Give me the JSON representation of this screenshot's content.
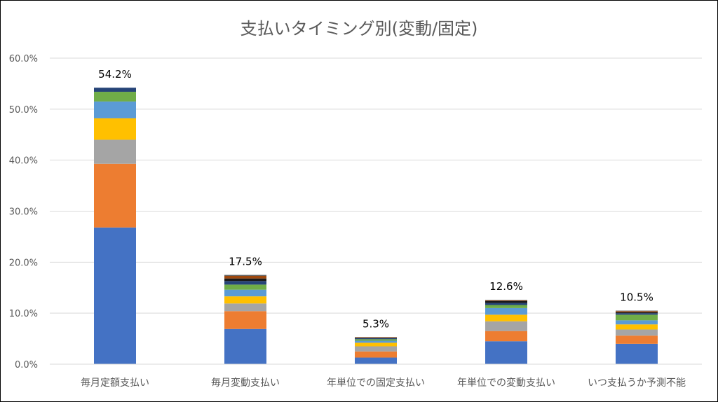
{
  "chart_data": {
    "type": "bar",
    "stacked": true,
    "title": "支払いタイミング別(変動/固定)",
    "categories": [
      "毎月定額支払い",
      "毎月変動支払い",
      "年単位での固定支払い",
      "年単位での変動支払い",
      "いつ支払うか予測不能"
    ],
    "totals_labels": [
      "54.2%",
      "17.5%",
      "5.3%",
      "12.6%",
      "10.5%"
    ],
    "ylim": [
      0,
      60
    ],
    "yticks": [
      0,
      10,
      20,
      30,
      40,
      50,
      60
    ],
    "ytick_labels": [
      "0.0%",
      "10.0%",
      "20.0%",
      "30.0%",
      "40.0%",
      "50.0%",
      "60.0%"
    ],
    "grid": true,
    "legend": "none",
    "series": [
      {
        "color": "#4472C4",
        "values": [
          26.8,
          6.9,
          1.3,
          4.5,
          4.0
        ]
      },
      {
        "color": "#ED7D31",
        "values": [
          12.5,
          3.5,
          1.2,
          2.0,
          1.6
        ]
      },
      {
        "color": "#A5A5A5",
        "values": [
          4.7,
          1.5,
          1.0,
          1.9,
          1.2
        ]
      },
      {
        "color": "#FFC000",
        "values": [
          4.2,
          1.4,
          0.7,
          1.3,
          1.0
        ]
      },
      {
        "color": "#5B9BD5",
        "values": [
          3.3,
          1.3,
          0.4,
          1.3,
          0.8
        ]
      },
      {
        "color": "#70AD47",
        "values": [
          1.9,
          1.0,
          0.3,
          0.6,
          1.1
        ]
      },
      {
        "color": "#264478",
        "values": [
          0.8,
          0.7,
          0.2,
          0.4,
          0.3
        ]
      },
      {
        "color": "#1A1A1A",
        "values": [
          0.0,
          0.5,
          0.1,
          0.4,
          0.2
        ]
      },
      {
        "color": "#9E480E",
        "values": [
          0.0,
          0.5,
          0.1,
          0.1,
          0.2
        ]
      },
      {
        "color": "#636363",
        "values": [
          0.0,
          0.2,
          0.0,
          0.1,
          0.1
        ]
      }
    ]
  }
}
